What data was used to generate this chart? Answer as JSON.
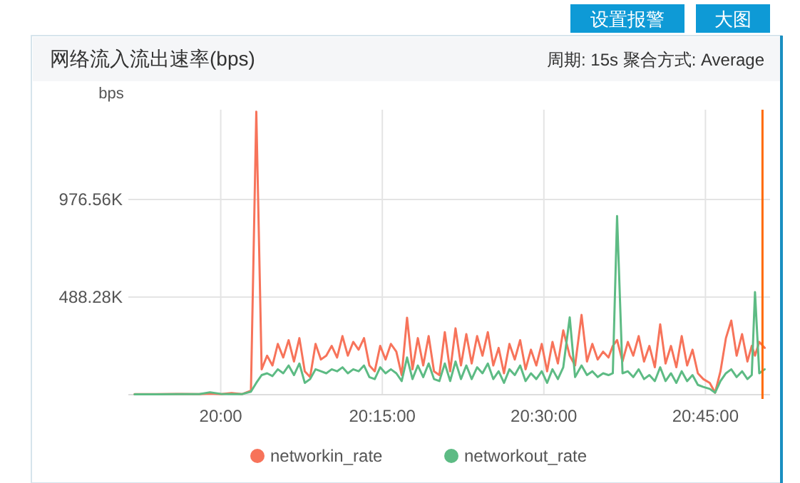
{
  "chart_data": {
    "type": "line",
    "title": "网络流入流出速率(bps)",
    "ylabel": "bps",
    "annotations": [
      "周期: 15s  聚合方式: Average",
      "设置报警",
      "大图"
    ],
    "xlim": [
      19.857,
      20.85
    ],
    "ylim": [
      0,
      1426
    ],
    "xticks": [
      {
        "value": 20,
        "label": "20:00"
      },
      {
        "value": 20.25,
        "label": "20:15:00"
      },
      {
        "value": 20.5,
        "label": "20:30:00"
      },
      {
        "value": 20.75,
        "label": "20:45:00"
      }
    ],
    "yticks": [
      {
        "value": 488.28,
        "label": "488.28K"
      },
      {
        "value": 976.56,
        "label": "976.56K"
      }
    ],
    "grid": true,
    "legend": "bottom",
    "ref_lines": [
      {
        "axis": "x",
        "value": 20.8383,
        "label": null,
        "color": "#ff6a00"
      }
    ],
    "x": [
      19.8667,
      19.9,
      19.9333,
      19.9667,
      19.9833,
      20,
      20.0167,
      20.0333,
      20.0467,
      20.055,
      20.0633,
      20.0717,
      20.08,
      20.0883,
      20.0967,
      20.105,
      20.1133,
      20.1217,
      20.13,
      20.1383,
      20.1467,
      20.155,
      20.1633,
      20.1717,
      20.18,
      20.1883,
      20.1967,
      20.205,
      20.2133,
      20.2217,
      20.23,
      20.2383,
      20.2467,
      20.255,
      20.2633,
      20.2717,
      20.28,
      20.2883,
      20.2967,
      20.305,
      20.3133,
      20.3217,
      20.33,
      20.3383,
      20.3467,
      20.355,
      20.3633,
      20.3717,
      20.38,
      20.3883,
      20.3967,
      20.405,
      20.4133,
      20.4217,
      20.43,
      20.4383,
      20.4467,
      20.455,
      20.4633,
      20.4717,
      20.48,
      20.4883,
      20.4967,
      20.505,
      20.5133,
      20.5217,
      20.53,
      20.54,
      20.5483,
      20.5583,
      20.5667,
      20.575,
      20.5833,
      20.5917,
      20.6,
      20.6067,
      20.6133,
      20.6217,
      20.63,
      20.6383,
      20.6467,
      20.655,
      20.6633,
      20.6717,
      20.68,
      20.6883,
      20.6967,
      20.705,
      20.7133,
      20.7217,
      20.73,
      20.7383,
      20.7467,
      20.7567,
      20.765,
      20.7733,
      20.7817,
      20.79,
      20.7983,
      20.8067,
      20.815,
      20.8217,
      20.8267,
      20.8333,
      20.8417
    ],
    "series": [
      {
        "name": "networkin_rate",
        "color": "#f7735a",
        "values": [
          3,
          3,
          4,
          3,
          5,
          3,
          8,
          3,
          20,
          1416,
          127,
          195,
          146,
          254,
          186,
          273,
          166,
          283,
          117,
          88,
          254,
          176,
          195,
          244,
          186,
          293,
          195,
          264,
          225,
          283,
          146,
          117,
          244,
          176,
          254,
          215,
          98,
          385,
          127,
          283,
          146,
          293,
          117,
          98,
          313,
          117,
          332,
          146,
          303,
          156,
          293,
          195,
          313,
          146,
          234,
          107,
          254,
          176,
          273,
          127,
          225,
          146,
          254,
          117,
          264,
          156,
          322,
          195,
          146,
          399,
          166,
          254,
          176,
          215,
          186,
          244,
          273,
          166,
          264,
          195,
          293,
          166,
          244,
          137,
          352,
          156,
          244,
          137,
          293,
          146,
          225,
          107,
          78,
          59,
          10,
          117,
          283,
          371,
          195,
          303,
          166,
          244,
          195,
          264,
          234
        ]
      },
      {
        "name": "networkout_rate",
        "color": "#5dbb84",
        "values": [
          2,
          2,
          3,
          3,
          12,
          4,
          3,
          3,
          15,
          59,
          98,
          107,
          93,
          127,
          107,
          146,
          98,
          156,
          59,
          78,
          127,
          117,
          107,
          127,
          117,
          137,
          107,
          127,
          117,
          146,
          88,
          78,
          137,
          107,
          127,
          107,
          68,
          186,
          78,
          146,
          88,
          156,
          78,
          68,
          156,
          68,
          166,
          78,
          146,
          78,
          137,
          107,
          156,
          78,
          117,
          59,
          127,
          98,
          146,
          68,
          107,
          78,
          117,
          59,
          127,
          78,
          137,
          387,
          88,
          146,
          98,
          117,
          88,
          107,
          98,
          107,
          894,
          107,
          117,
          88,
          127,
          78,
          98,
          68,
          137,
          68,
          107,
          59,
          117,
          68,
          98,
          49,
          39,
          29,
          10,
          68,
          107,
          127,
          88,
          117,
          78,
          98,
          513,
          107,
          127
        ]
      }
    ]
  }
}
